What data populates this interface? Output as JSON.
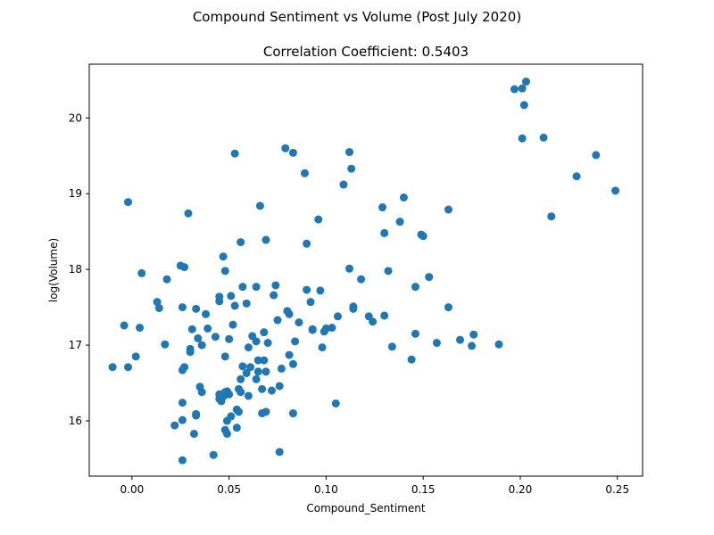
{
  "chart_data": {
    "type": "scatter",
    "suptitle": "Compound Sentiment vs Volume (Post July 2020)",
    "title": "Correlation Coefficient: 0.5403",
    "xlabel": "Compound_Sentiment",
    "ylabel": "log(Volume)",
    "xlim": [
      -0.022,
      0.263
    ],
    "ylim": [
      15.27,
      20.71
    ],
    "xticks": [
      0.0,
      0.05,
      0.1,
      0.15,
      0.2,
      0.25
    ],
    "xtick_labels": [
      "0.00",
      "0.05",
      "0.10",
      "0.15",
      "0.20",
      "0.25"
    ],
    "yticks": [
      16,
      17,
      18,
      19,
      20
    ],
    "ytick_labels": [
      "16",
      "17",
      "18",
      "19",
      "20"
    ],
    "grid": false,
    "marker_color": "#1f77b4",
    "points": [
      [
        -0.01,
        16.71
      ],
      [
        -0.004,
        17.26
      ],
      [
        -0.002,
        16.71
      ],
      [
        -0.002,
        18.89
      ],
      [
        0.002,
        16.85
      ],
      [
        0.004,
        17.23
      ],
      [
        0.005,
        17.95
      ],
      [
        0.013,
        17.57
      ],
      [
        0.014,
        17.49
      ],
      [
        0.017,
        17.01
      ],
      [
        0.018,
        17.87
      ],
      [
        0.022,
        15.94
      ],
      [
        0.025,
        18.05
      ],
      [
        0.026,
        17.5
      ],
      [
        0.026,
        16.24
      ],
      [
        0.026,
        15.48
      ],
      [
        0.026,
        16.01
      ],
      [
        0.026,
        16.67
      ],
      [
        0.027,
        16.71
      ],
      [
        0.027,
        18.03
      ],
      [
        0.029,
        18.74
      ],
      [
        0.03,
        16.95
      ],
      [
        0.03,
        16.91
      ],
      [
        0.031,
        17.21
      ],
      [
        0.032,
        15.83
      ],
      [
        0.033,
        16.09
      ],
      [
        0.033,
        17.48
      ],
      [
        0.033,
        16.07
      ],
      [
        0.034,
        17.09
      ],
      [
        0.035,
        16.45
      ],
      [
        0.036,
        17.0
      ],
      [
        0.036,
        16.38
      ],
      [
        0.038,
        17.41
      ],
      [
        0.039,
        17.22
      ],
      [
        0.042,
        15.55
      ],
      [
        0.043,
        17.11
      ],
      [
        0.045,
        17.64
      ],
      [
        0.045,
        16.35
      ],
      [
        0.045,
        16.29
      ],
      [
        0.045,
        17.58
      ],
      [
        0.046,
        16.26
      ],
      [
        0.047,
        16.32
      ],
      [
        0.047,
        18.17
      ],
      [
        0.048,
        15.88
      ],
      [
        0.048,
        17.98
      ],
      [
        0.048,
        16.85
      ],
      [
        0.048,
        16.38
      ],
      [
        0.049,
        16.0
      ],
      [
        0.049,
        15.83
      ],
      [
        0.049,
        16.39
      ],
      [
        0.05,
        17.08
      ],
      [
        0.05,
        16.35
      ],
      [
        0.051,
        17.65
      ],
      [
        0.051,
        16.06
      ],
      [
        0.052,
        17.27
      ],
      [
        0.053,
        17.52
      ],
      [
        0.053,
        19.53
      ],
      [
        0.054,
        15.91
      ],
      [
        0.054,
        16.15
      ],
      [
        0.055,
        16.42
      ],
      [
        0.055,
        16.12
      ],
      [
        0.056,
        16.38
      ],
      [
        0.056,
        18.36
      ],
      [
        0.056,
        16.55
      ],
      [
        0.057,
        17.77
      ],
      [
        0.057,
        16.72
      ],
      [
        0.059,
        16.63
      ],
      [
        0.059,
        17.55
      ],
      [
        0.06,
        16.33
      ],
      [
        0.06,
        16.97
      ],
      [
        0.061,
        16.71
      ],
      [
        0.062,
        17.12
      ],
      [
        0.064,
        17.77
      ],
      [
        0.064,
        17.05
      ],
      [
        0.064,
        16.55
      ],
      [
        0.065,
        16.8
      ],
      [
        0.065,
        16.65
      ],
      [
        0.066,
        18.84
      ],
      [
        0.067,
        16.42
      ],
      [
        0.067,
        16.1
      ],
      [
        0.068,
        17.17
      ],
      [
        0.068,
        16.8
      ],
      [
        0.069,
        18.39
      ],
      [
        0.069,
        16.65
      ],
      [
        0.069,
        16.12
      ],
      [
        0.07,
        17.03
      ],
      [
        0.072,
        16.4
      ],
      [
        0.073,
        17.66
      ],
      [
        0.074,
        17.79
      ],
      [
        0.075,
        17.33
      ],
      [
        0.076,
        15.59
      ],
      [
        0.076,
        16.46
      ],
      [
        0.077,
        16.69
      ],
      [
        0.079,
        19.6
      ],
      [
        0.08,
        17.45
      ],
      [
        0.081,
        17.41
      ],
      [
        0.081,
        16.87
      ],
      [
        0.083,
        16.75
      ],
      [
        0.083,
        16.1
      ],
      [
        0.083,
        19.54
      ],
      [
        0.084,
        17.05
      ],
      [
        0.086,
        17.3
      ],
      [
        0.089,
        19.27
      ],
      [
        0.09,
        18.34
      ],
      [
        0.09,
        17.73
      ],
      [
        0.092,
        17.57
      ],
      [
        0.093,
        17.2
      ],
      [
        0.093,
        17.21
      ],
      [
        0.096,
        18.66
      ],
      [
        0.097,
        17.72
      ],
      [
        0.098,
        16.97
      ],
      [
        0.099,
        17.18
      ],
      [
        0.1,
        17.22
      ],
      [
        0.103,
        17.23
      ],
      [
        0.105,
        16.23
      ],
      [
        0.106,
        17.38
      ],
      [
        0.109,
        19.12
      ],
      [
        0.112,
        19.55
      ],
      [
        0.112,
        18.01
      ],
      [
        0.113,
        19.33
      ],
      [
        0.114,
        17.48
      ],
      [
        0.114,
        17.51
      ],
      [
        0.118,
        17.87
      ],
      [
        0.122,
        17.38
      ],
      [
        0.124,
        17.31
      ],
      [
        0.129,
        18.82
      ],
      [
        0.13,
        18.48
      ],
      [
        0.13,
        17.39
      ],
      [
        0.132,
        17.98
      ],
      [
        0.134,
        16.98
      ],
      [
        0.138,
        18.63
      ],
      [
        0.14,
        18.95
      ],
      [
        0.144,
        16.81
      ],
      [
        0.146,
        17.77
      ],
      [
        0.146,
        17.15
      ],
      [
        0.149,
        18.46
      ],
      [
        0.15,
        18.44
      ],
      [
        0.153,
        17.9
      ],
      [
        0.157,
        17.03
      ],
      [
        0.163,
        17.5
      ],
      [
        0.163,
        18.79
      ],
      [
        0.169,
        17.07
      ],
      [
        0.175,
        16.99
      ],
      [
        0.176,
        17.14
      ],
      [
        0.189,
        17.01
      ],
      [
        0.197,
        20.38
      ],
      [
        0.201,
        20.39
      ],
      [
        0.201,
        19.73
      ],
      [
        0.202,
        20.17
      ],
      [
        0.203,
        20.48
      ],
      [
        0.212,
        19.74
      ],
      [
        0.216,
        18.7
      ],
      [
        0.229,
        19.23
      ],
      [
        0.239,
        19.51
      ],
      [
        0.249,
        19.04
      ]
    ]
  }
}
